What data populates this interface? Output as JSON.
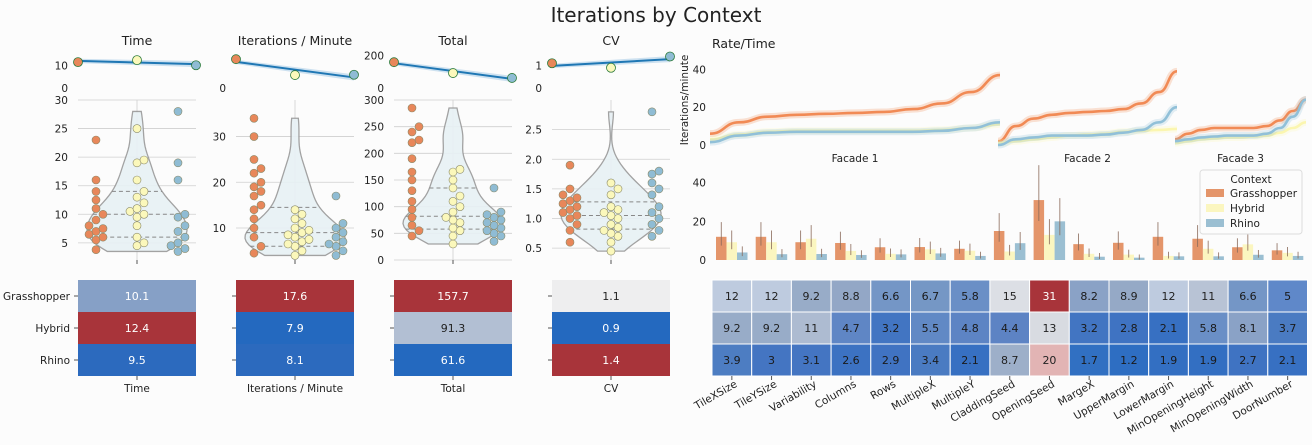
{
  "title": "Iterations by Context",
  "colors": {
    "grasshopper": "#e8875a",
    "hybrid": "#fbf8bb",
    "rhino": "#8fbcd4",
    "trend": "#1f77b4",
    "violin": "#e8f1f5"
  },
  "metric_panels": [
    {
      "title": "Time",
      "xlabel": "Time",
      "trend_yticks": [
        "10",
        "0"
      ],
      "trend_ylim": [
        0,
        16
      ],
      "trend_points": [
        11.5,
        12.4,
        10.1
      ],
      "violin_yticks": [
        "30",
        "25",
        "20",
        "15",
        "10",
        "5"
      ],
      "ylim": [
        2,
        30
      ],
      "grid": [
        5,
        10,
        15,
        20,
        25,
        30
      ],
      "quartiles": [
        6.0,
        10.0,
        14.0
      ],
      "grasshopper": [
        3.8,
        5.5,
        6.0,
        6.5,
        7.0,
        7.5,
        8.0,
        9.0,
        10.0,
        11.0,
        12.5,
        14.0,
        16.0,
        23.0
      ],
      "hybrid": [
        4.5,
        5.0,
        6.0,
        8.0,
        9.5,
        10.0,
        10.5,
        11.0,
        12.0,
        13.0,
        14.0,
        16.0,
        19.0,
        19.5,
        25.0
      ],
      "rhino": [
        3.5,
        4.0,
        4.5,
        5.0,
        6.0,
        7.0,
        8.0,
        9.5,
        10.0,
        16.0,
        19.0,
        28.0
      ],
      "heatmap": [
        {
          "v": 10.1,
          "c": "#86a0c6"
        },
        {
          "v": 12.4,
          "c": "#a8343a"
        },
        {
          "v": 9.5,
          "c": "#2c6abe"
        }
      ]
    },
    {
      "title": "Iterations / Minute",
      "xlabel": "Iterations / Minute",
      "trend_yticks": [
        "",
        "0"
      ],
      "trend_ylim": [
        0,
        22
      ],
      "trend_points": [
        17.6,
        7.9,
        8.1
      ],
      "violin_yticks": [
        "30",
        "20",
        "10"
      ],
      "ylim": [
        3,
        38
      ],
      "grid": [
        10,
        20,
        30
      ],
      "quartiles": [
        6.0,
        9.0,
        14.5
      ],
      "grasshopper": [
        4.5,
        6.0,
        8.0,
        10.0,
        12.0,
        14.0,
        15.0,
        17.0,
        18.0,
        19.0,
        20.0,
        22.0,
        23.0,
        25.0,
        30.0,
        34.0
      ],
      "hybrid": [
        4.0,
        5.0,
        6.0,
        6.5,
        7.0,
        7.5,
        8.0,
        8.5,
        9.0,
        9.5,
        10.0,
        11.0,
        12.0,
        13.0,
        14.0
      ],
      "rhino": [
        4.0,
        5.0,
        6.0,
        6.5,
        7.0,
        8.0,
        9.0,
        10.0,
        11.0,
        17.0
      ],
      "heatmap": [
        {
          "v": 17.6,
          "c": "#a8343a"
        },
        {
          "v": 7.9,
          "c": "#2469bf"
        },
        {
          "v": 8.1,
          "c": "#2c6abe"
        }
      ]
    },
    {
      "title": "Total",
      "xlabel": "Total",
      "trend_yticks": [
        "200",
        "0"
      ],
      "trend_ylim": [
        0,
        220
      ],
      "trend_points": [
        157.7,
        91.3,
        61.6
      ],
      "violin_yticks": [
        "300",
        "250",
        "200",
        "150",
        "100",
        "50",
        "0"
      ],
      "ylim": [
        0,
        300
      ],
      "grid": [
        0,
        50,
        100,
        150,
        200,
        250,
        300
      ],
      "quartiles": [
        58.0,
        82.0,
        135.0
      ],
      "grasshopper": [
        45,
        55,
        65,
        80,
        95,
        110,
        130,
        150,
        165,
        190,
        220,
        225,
        240,
        250,
        285
      ],
      "hybrid": [
        30,
        45,
        55,
        60,
        70,
        75,
        80,
        90,
        100,
        110,
        120,
        135,
        150,
        165,
        170
      ],
      "rhino": [
        35,
        45,
        50,
        55,
        60,
        65,
        70,
        75,
        80,
        85,
        90,
        135
      ],
      "heatmap": [
        {
          "v": 157.7,
          "c": "#a8343a"
        },
        {
          "v": 91.3,
          "c": "#b2bfd3"
        },
        {
          "v": 61.6,
          "c": "#2469bf"
        }
      ]
    },
    {
      "title": "CV",
      "xlabel": "CV",
      "trend_yticks": [
        "1",
        "0"
      ],
      "trend_ylim": [
        0,
        1.6
      ],
      "trend_points": [
        1.1,
        0.9,
        1.4
      ],
      "violin_yticks": [
        "2.5",
        "2.0",
        "1.5",
        "1.0",
        "0.5"
      ],
      "ylim": [
        0.3,
        3.0
      ],
      "grid": [
        0.5,
        1.0,
        1.5,
        2.0,
        2.5
      ],
      "quartiles": [
        0.82,
        1.05,
        1.28
      ],
      "grasshopper": [
        0.6,
        0.8,
        0.9,
        1.0,
        1.05,
        1.1,
        1.15,
        1.2,
        1.25,
        1.3,
        1.35,
        1.4,
        1.5,
        1.9
      ],
      "hybrid": [
        0.45,
        0.6,
        0.7,
        0.75,
        0.8,
        0.85,
        0.9,
        1.0,
        1.05,
        1.1,
        1.15,
        1.2,
        1.4,
        1.5,
        1.6
      ],
      "rhino": [
        0.7,
        0.8,
        0.9,
        1.0,
        1.1,
        1.2,
        1.4,
        1.5,
        1.6,
        1.75,
        1.8,
        2.8
      ],
      "heatmap": [
        {
          "v": 1.1,
          "c": "#eeeeef"
        },
        {
          "v": 0.9,
          "c": "#2469bf"
        },
        {
          "v": 1.4,
          "c": "#a8343a"
        }
      ]
    }
  ],
  "heatmap_rows": [
    "Grasshopper",
    "Hybrid",
    "Rhino"
  ],
  "rate": {
    "title": "Rate/Time",
    "ylabel": "Iterations/minute",
    "yticks": [
      "40",
      "20",
      "0"
    ],
    "ylim": [
      0,
      45
    ],
    "facades": [
      {
        "label": "Facade 1",
        "grasshopper": [
          6,
          12,
          15,
          16,
          16.5,
          17,
          17.5,
          19,
          22,
          28,
          37
        ],
        "hybrid": [
          3,
          5.5,
          7,
          7.5,
          7.5,
          7.5,
          7.5,
          7.5,
          8,
          9,
          11
        ],
        "rhino": [
          1.5,
          5,
          6.5,
          7,
          7,
          7,
          7,
          7,
          7.5,
          9,
          12
        ]
      },
      {
        "label": "Facade 2",
        "grasshopper": [
          2,
          10,
          14,
          16,
          17,
          17.5,
          18,
          19,
          22,
          28,
          39
        ],
        "hybrid": [
          1,
          2,
          3,
          4,
          5,
          5.5,
          6,
          7,
          7.5,
          8,
          8.5
        ],
        "rhino": [
          0,
          3,
          4,
          5,
          5,
          5,
          5.5,
          6.5,
          8,
          12,
          20
        ]
      },
      {
        "label": "Facade 3",
        "grasshopper": [
          3,
          6,
          8,
          9,
          9,
          9,
          9,
          10,
          13,
          18,
          24
        ],
        "hybrid": [
          1,
          2,
          3,
          3.5,
          4,
          4,
          4.5,
          5,
          6.5,
          9,
          12
        ],
        "rhino": [
          2,
          3,
          4,
          4.5,
          5,
          5,
          5,
          6,
          9,
          15,
          24
        ]
      }
    ]
  },
  "bars": {
    "yticks": [
      "40",
      "20",
      "0"
    ],
    "ylim": [
      0,
      45
    ],
    "legend_title": "Context",
    "legend": [
      "Grasshopper",
      "Hybrid",
      "Rhino"
    ],
    "grasshopper": [
      12,
      12,
      9.2,
      8.8,
      6.6,
      6.7,
      5.8,
      15,
      31,
      8.2,
      8.9,
      12,
      11,
      6.6,
      5
    ],
    "hybrid": [
      9.2,
      9.2,
      11,
      4.7,
      3.2,
      5.5,
      4.8,
      4.4,
      13,
      3.2,
      2.8,
      2.1,
      5.8,
      8.1,
      3.7
    ],
    "rhino": [
      3.9,
      3,
      3.1,
      2.6,
      2.9,
      3.4,
      2.1,
      8.7,
      20,
      1.7,
      1.2,
      1.9,
      1.9,
      2.7,
      2.1
    ]
  },
  "params": [
    "TileXSize",
    "TileYSize",
    "Variability",
    "Columns",
    "Rows",
    "MultipleX",
    "MultipleY",
    "CladdingSeed",
    "OpeningSeed",
    "MargeX",
    "UpperMargin",
    "LowerMargin",
    "MinOpeningHeight",
    "MinOpeningWidth",
    "DoorNumber"
  ],
  "param_heatmap": [
    [
      "12",
      "12",
      "9.2",
      "8.8",
      "6.6",
      "6.7",
      "5.8",
      "15",
      "31",
      "8.2",
      "8.9",
      "12",
      "11",
      "6.6",
      "5"
    ],
    [
      "9.2",
      "9.2",
      "11",
      "4.7",
      "3.2",
      "5.5",
      "4.8",
      "4.4",
      "13",
      "3.2",
      "2.8",
      "2.1",
      "5.8",
      "8.1",
      "3.7"
    ],
    [
      "3.9",
      "3",
      "3.1",
      "2.6",
      "2.9",
      "3.4",
      "2.1",
      "8.7",
      "20",
      "1.7",
      "1.2",
      "1.9",
      "1.9",
      "2.7",
      "2.1"
    ]
  ],
  "param_heatmap_colors": [
    [
      "#becbdf",
      "#becbdf",
      "#98acc8",
      "#93a7c6",
      "#7496c6",
      "#7597c5",
      "#6a8fc6",
      "#dcdfe5",
      "#a8343a",
      "#8aa2c6",
      "#95a9c6",
      "#becbdf",
      "#b8c3d5",
      "#7496c6",
      "#5f88c9"
    ],
    [
      "#98acc8",
      "#98acc8",
      "#adbbd1",
      "#5f86c5",
      "#4275c2",
      "#6189c5",
      "#5d84c4",
      "#5d83c4",
      "#d8dbe1",
      "#4275c2",
      "#3f73c2",
      "#3770c2",
      "#6a8fc6",
      "#8aa2c6",
      "#4a7bc2"
    ],
    [
      "#4d7dc2",
      "#4475c2",
      "#4475c2",
      "#3c72c2",
      "#4073c2",
      "#4a7bc2",
      "#3770c2",
      "#9dafc9",
      "#e2b4b4",
      "#3170c2",
      "#2e6ec2",
      "#336fc2",
      "#336fc2",
      "#3f73c2",
      "#3770c2"
    ]
  ]
}
